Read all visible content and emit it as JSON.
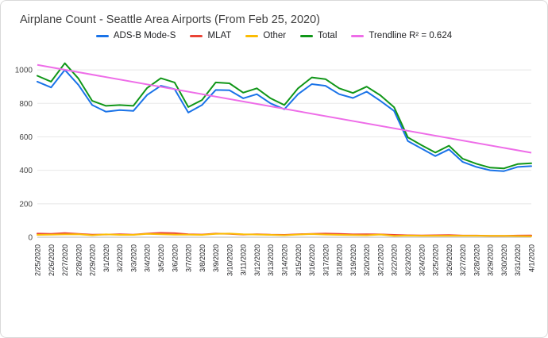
{
  "chart_data": {
    "type": "line",
    "title": "Airplane Count - Seattle Area Airports (From Feb 25, 2020)",
    "legend_position": "top",
    "grid": true,
    "ylim": [
      0,
      1100
    ],
    "yticks": [
      0,
      200,
      400,
      600,
      800,
      1000
    ],
    "x": [
      "2/25/2020",
      "2/26/2020",
      "2/27/2020",
      "2/28/2020",
      "2/29/2020",
      "3/1/2020",
      "3/2/2020",
      "3/3/2020",
      "3/4/2020",
      "3/5/2020",
      "3/6/2020",
      "3/7/2020",
      "3/8/2020",
      "3/9/2020",
      "3/10/2020",
      "3/11/2020",
      "3/12/2020",
      "3/13/2020",
      "3/14/2020",
      "3/15/2020",
      "3/16/2020",
      "3/17/2020",
      "3/18/2020",
      "3/19/2020",
      "3/20/2020",
      "3/21/2020",
      "3/22/2020",
      "3/23/2020",
      "3/24/2020",
      "3/25/2020",
      "3/26/2020",
      "3/27/2020",
      "3/28/2020",
      "3/29/2020",
      "3/30/2020",
      "3/31/2020",
      "4/1/2020"
    ],
    "series": [
      {
        "name": "ADS-B Mode-S",
        "color": "#1a73e8",
        "values": [
          930,
          895,
          1000,
          910,
          790,
          750,
          760,
          755,
          850,
          905,
          885,
          745,
          790,
          880,
          878,
          830,
          855,
          800,
          765,
          855,
          915,
          905,
          855,
          832,
          870,
          815,
          755,
          575,
          530,
          485,
          525,
          450,
          420,
          400,
          395,
          420,
          425
        ]
      },
      {
        "name": "MLAT",
        "color": "#ea4335",
        "values": [
          22,
          20,
          25,
          20,
          15,
          16,
          18,
          15,
          22,
          26,
          24,
          18,
          16,
          22,
          20,
          16,
          18,
          15,
          14,
          18,
          20,
          22,
          20,
          17,
          18,
          17,
          14,
          12,
          11,
          12,
          13,
          10,
          10,
          8,
          8,
          10,
          11
        ]
      },
      {
        "name": "Other",
        "color": "#fbbc04",
        "values": [
          14,
          15,
          17,
          18,
          12,
          17,
          14,
          14,
          20,
          18,
          15,
          15,
          14,
          20,
          22,
          18,
          16,
          14,
          12,
          16,
          19,
          16,
          14,
          13,
          12,
          16,
          8,
          10,
          9,
          9,
          9,
          9,
          9,
          8,
          8,
          7,
          6
        ]
      },
      {
        "name": "Total",
        "color": "#109618",
        "values": [
          965,
          930,
          1040,
          948,
          815,
          785,
          790,
          785,
          892,
          950,
          925,
          778,
          820,
          925,
          920,
          864,
          890,
          830,
          790,
          890,
          955,
          945,
          890,
          862,
          900,
          848,
          777,
          597,
          550,
          506,
          547,
          469,
          439,
          416,
          411,
          437,
          442
        ]
      }
    ],
    "trendline": {
      "name": "Trendline R² = 0.624",
      "color": "#ee6de8",
      "r_squared": 0.624,
      "start": 1030,
      "end": 505
    }
  }
}
